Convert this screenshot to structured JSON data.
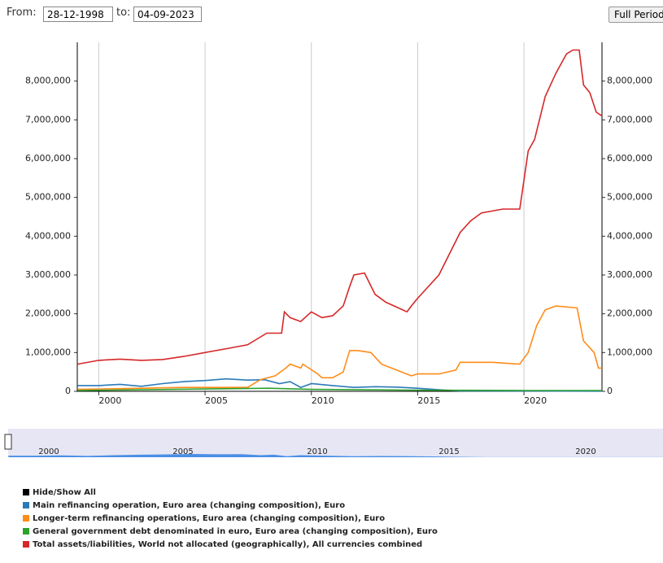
{
  "controls": {
    "from_label": "From:",
    "from_value": "28-12-1998",
    "to_label": "to:",
    "to_value": "04-09-2023",
    "button": "Full Period"
  },
  "chart_data": {
    "type": "line",
    "xlim": [
      1998.99,
      2023.67
    ],
    "xticks": [
      2000,
      2005,
      2010,
      2015,
      2020
    ],
    "ylim": [
      0,
      9000000
    ],
    "yticks": [
      {
        "value": 0,
        "label": "0"
      },
      {
        "value": 1000000,
        "label": "1,000,000"
      },
      {
        "value": 2000000,
        "label": "2,000,000"
      },
      {
        "value": 3000000,
        "label": "3,000,000"
      },
      {
        "value": 4000000,
        "label": "4,000,000"
      },
      {
        "value": 5000000,
        "label": "5,000,000"
      },
      {
        "value": 6000000,
        "label": "6,000,000"
      },
      {
        "value": 7000000,
        "label": "7,000,000"
      },
      {
        "value": 8000000,
        "label": "8,000,000"
      }
    ],
    "grid": true,
    "legend_toggle": "Hide/Show All",
    "series": [
      {
        "name": "Main refinancing operation, Euro area (changing composition), Euro",
        "color": "#2a7ab9",
        "x": [
          1999,
          2000,
          2001,
          2002,
          2003,
          2004,
          2005,
          2006,
          2007,
          2007.8,
          2008.5,
          2009,
          2009.5,
          2010,
          2011,
          2012,
          2013,
          2014,
          2015,
          2016,
          2017,
          2023.67
        ],
        "values": [
          150000,
          150000,
          180000,
          130000,
          200000,
          250000,
          280000,
          320000,
          290000,
          300000,
          200000,
          250000,
          100000,
          200000,
          150000,
          100000,
          120000,
          110000,
          80000,
          40000,
          10000,
          5000
        ]
      },
      {
        "name": "Longer-term refinancing operations, Euro area (changing composition), Euro",
        "color": "#ff8c1a",
        "x": [
          1999,
          2004,
          2007,
          2007.6,
          2008.3,
          2008.8,
          2009,
          2009.5,
          2009.6,
          2010.3,
          2010.5,
          2011,
          2011.5,
          2011.8,
          2012.2,
          2012.8,
          2013.3,
          2014,
          2014.7,
          2015,
          2016,
          2016.8,
          2017,
          2018.5,
          2019.8,
          2020.2,
          2020.6,
          2021,
          2021.5,
          2022.5,
          2022.8,
          2023.3,
          2023.5,
          2023.67
        ],
        "values": [
          50000,
          100000,
          100000,
          300000,
          400000,
          600000,
          700000,
          600000,
          700000,
          450000,
          350000,
          350000,
          500000,
          1050000,
          1050000,
          1000000,
          700000,
          550000,
          400000,
          450000,
          450000,
          550000,
          750000,
          750000,
          700000,
          1000000,
          1700000,
          2100000,
          2200000,
          2150000,
          1300000,
          1000000,
          600000,
          600000
        ]
      },
      {
        "name": "General government debt denominated in euro, Euro area (changing composition), Euro",
        "color": "#2ca02c",
        "x": [
          1999,
          2005,
          2008,
          2010,
          2015,
          2020,
          2023.67
        ],
        "values": [
          20000,
          60000,
          80000,
          50000,
          30000,
          20000,
          20000
        ]
      },
      {
        "name": "Total assets/liabilities, World not allocated (geographically), All currencies combined",
        "color": "#d62728",
        "x": [
          1999,
          2000,
          2001,
          2002,
          2003,
          2004,
          2005,
          2006,
          2007,
          2007.9,
          2008.6,
          2008.73,
          2009,
          2009.5,
          2010,
          2010.5,
          2011,
          2011.5,
          2011.8,
          2012,
          2012.5,
          2013,
          2013.5,
          2014.5,
          2014.7,
          2015,
          2016,
          2017,
          2017.5,
          2018,
          2019,
          2019.8,
          2020.2,
          2020.5,
          2021,
          2021.5,
          2022,
          2022.3,
          2022.6,
          2022.8,
          2023.1,
          2023.4,
          2023.67
        ],
        "values": [
          700000,
          800000,
          830000,
          800000,
          820000,
          900000,
          1000000,
          1100000,
          1200000,
          1500000,
          1500000,
          2050000,
          1900000,
          1800000,
          2050000,
          1900000,
          1950000,
          2200000,
          2700000,
          3000000,
          3050000,
          2500000,
          2300000,
          2050000,
          2200000,
          2400000,
          3000000,
          4100000,
          4400000,
          4600000,
          4700000,
          4700000,
          6200000,
          6500000,
          7600000,
          8200000,
          8700000,
          8800000,
          8800000,
          7900000,
          7700000,
          7200000,
          7100000
        ]
      }
    ]
  },
  "navigator": {
    "labels": [
      "2000",
      "2005",
      "2010",
      "2015",
      "2020"
    ]
  }
}
